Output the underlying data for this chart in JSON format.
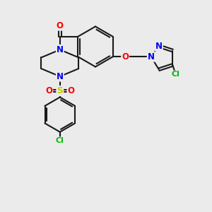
{
  "background_color": "#ebebeb",
  "bond_color": "#1a1a1a",
  "atom_colors": {
    "N": "#0000ee",
    "O": "#ff0000",
    "S": "#cccc00",
    "Cl": "#00bb00",
    "C": "#1a1a1a"
  },
  "line_width": 1.5,
  "dbo": 0.055,
  "fs": 8.5
}
